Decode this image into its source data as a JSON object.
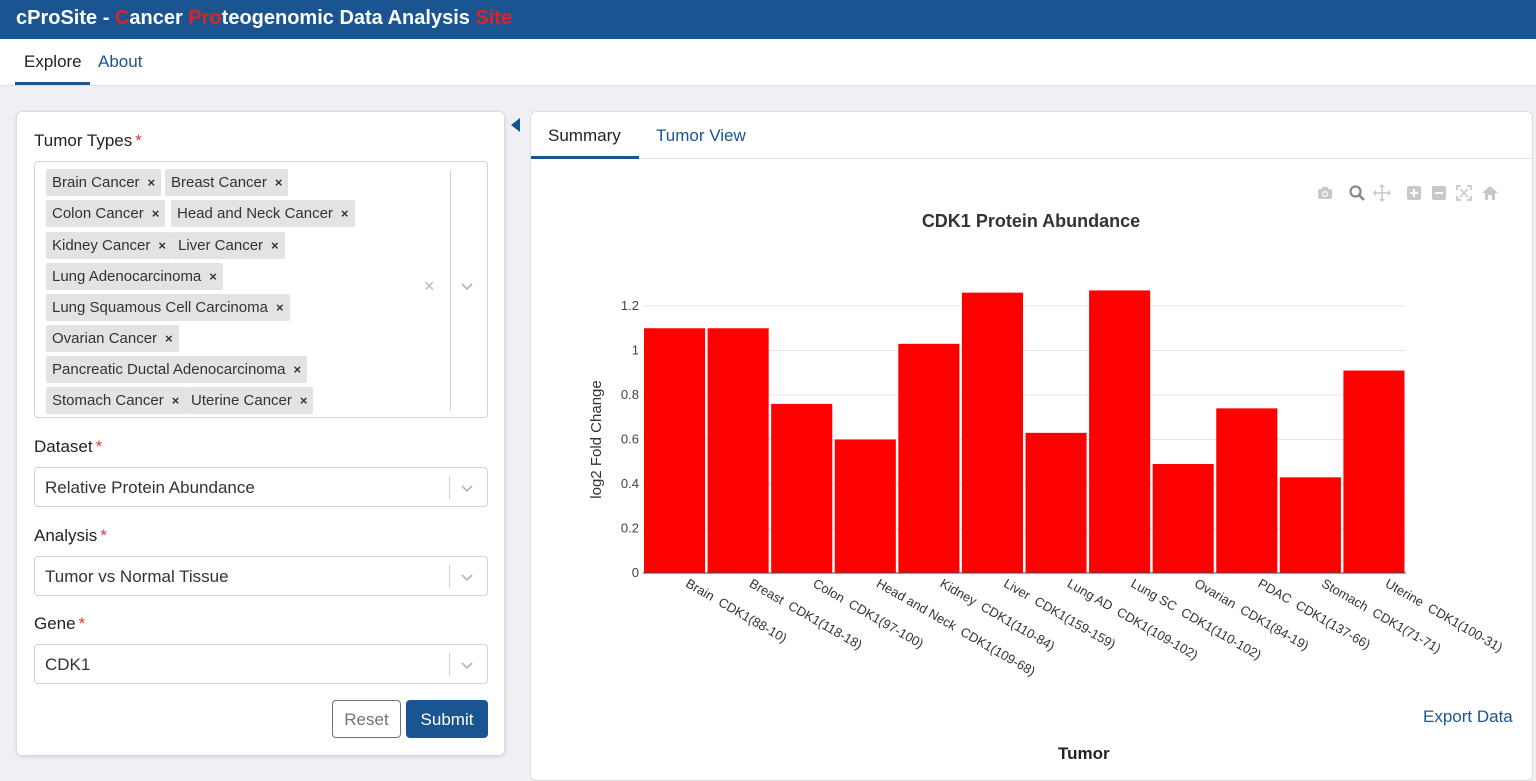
{
  "header": {
    "title_parts": [
      {
        "text": "cProSite - ",
        "red": false
      },
      {
        "text": "C",
        "red": true
      },
      {
        "text": "ancer ",
        "red": false
      },
      {
        "text": "Pro",
        "red": true
      },
      {
        "text": "teogenomic Data Analysis ",
        "red": false
      },
      {
        "text": "Site",
        "red": true
      }
    ]
  },
  "nav": {
    "tabs": [
      {
        "label": "Explore"
      },
      {
        "label": "About"
      }
    ]
  },
  "form": {
    "tumor_types_label": "Tumor Types",
    "required_mark": "*",
    "tumor_types": [
      "Brain Cancer",
      "Breast Cancer",
      "Colon Cancer",
      "Head and Neck Cancer",
      "Kidney Cancer",
      "Liver Cancer",
      "Lung Adenocarcinoma",
      "Lung Squamous Cell Carcinoma",
      "Ovarian Cancer",
      "Pancreatic Ductal Adenocarcinoma",
      "Stomach Cancer",
      "Uterine Cancer"
    ],
    "remove_glyph": "×",
    "clear_glyph": "×",
    "dataset_label": "Dataset",
    "dataset_value": "Relative Protein Abundance",
    "analysis_label": "Analysis",
    "analysis_value": "Tumor vs Normal Tissue",
    "gene_label": "Gene",
    "gene_value": "CDK1",
    "reset_label": "Reset",
    "submit_label": "Submit"
  },
  "results": {
    "tabs": [
      {
        "label": "Summary"
      },
      {
        "label": "Tumor View"
      }
    ],
    "export_label": "Export Data",
    "modebar_icons": [
      "camera-icon",
      "zoom-icon",
      "pan-icon",
      "zoom-in-icon",
      "zoom-out-icon",
      "autoscale-icon",
      "reset-axes-icon"
    ]
  },
  "chart_data": {
    "type": "bar",
    "title": "CDK1 Protein Abundance",
    "xlabel": "Tumor",
    "ylabel": "log2 Fold Change",
    "ylim": [
      0,
      1.3
    ],
    "yticks": [
      0,
      0.2,
      0.4,
      0.6,
      0.8,
      1,
      1.2
    ],
    "grid": true,
    "bar_color": "#ff0000",
    "categories": [
      "Brain  CDK1(88-10)",
      "Breast  CDK1(118-18)",
      "Colon  CDK1(97-100)",
      "Head and Neck  CDK1(109-68)",
      "Kidney  CDK1(110-84)",
      "Liver  CDK1(159-159)",
      "Lung AD  CDK1(109-102)",
      "Lung SC  CDK1(110-102)",
      "Ovarian  CDK1(84-19)",
      "PDAC  CDK1(137-66)",
      "Stomach  CDK1(71-71)",
      "Uterine  CDK1(100-31)"
    ],
    "values": [
      1.1,
      1.1,
      0.76,
      0.6,
      1.03,
      1.26,
      0.63,
      1.27,
      0.49,
      0.74,
      0.43,
      0.91
    ]
  }
}
